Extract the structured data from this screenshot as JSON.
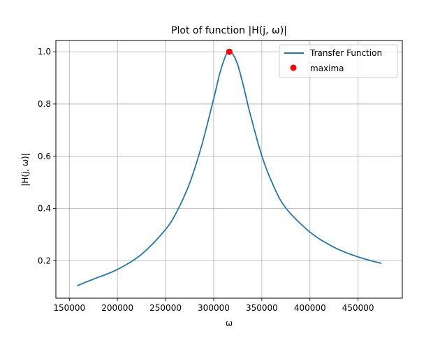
{
  "chart_data": {
    "type": "line",
    "title": "Plot of function |H(j, ω)|",
    "xlabel": "ω",
    "ylabel": "|H(j, ω)|",
    "xlim": [
      136000,
      496000
    ],
    "ylim": [
      0.057,
      1.043
    ],
    "x_ticks": [
      150000,
      200000,
      250000,
      300000,
      350000,
      400000,
      450000
    ],
    "x_tick_labels": [
      "150000",
      "200000",
      "250000",
      "300000",
      "350000",
      "400000",
      "450000"
    ],
    "y_ticks": [
      0.2,
      0.4,
      0.6,
      0.8,
      1.0
    ],
    "y_tick_labels": [
      "0.2",
      "0.4",
      "0.6",
      "0.8",
      "1.0"
    ],
    "grid": true,
    "legend_position": "top-right",
    "colors": {
      "line": "#1f77b4",
      "marker": "#ff0000",
      "grid": "#b0b0b0"
    },
    "series": [
      {
        "name": "Transfer Function",
        "kind": "line",
        "x": [
          158114,
          175000,
          200000,
          225000,
          250000,
          262500,
          275000,
          287500,
          300000,
          306250,
          312500,
          316228,
          320000,
          325000,
          331250,
          337500,
          350000,
          362500,
          375000,
          400000,
          425000,
          450000,
          474342
        ],
        "y": [
          0.105,
          0.13,
          0.167,
          0.225,
          0.32,
          0.394,
          0.497,
          0.641,
          0.82,
          0.916,
          0.985,
          1.0,
          0.99,
          0.95,
          0.864,
          0.768,
          0.602,
          0.484,
          0.402,
          0.31,
          0.252,
          0.215,
          0.19
        ]
      },
      {
        "name": "maxima",
        "kind": "marker",
        "x": [
          316228
        ],
        "y": [
          1.0
        ]
      }
    ]
  }
}
